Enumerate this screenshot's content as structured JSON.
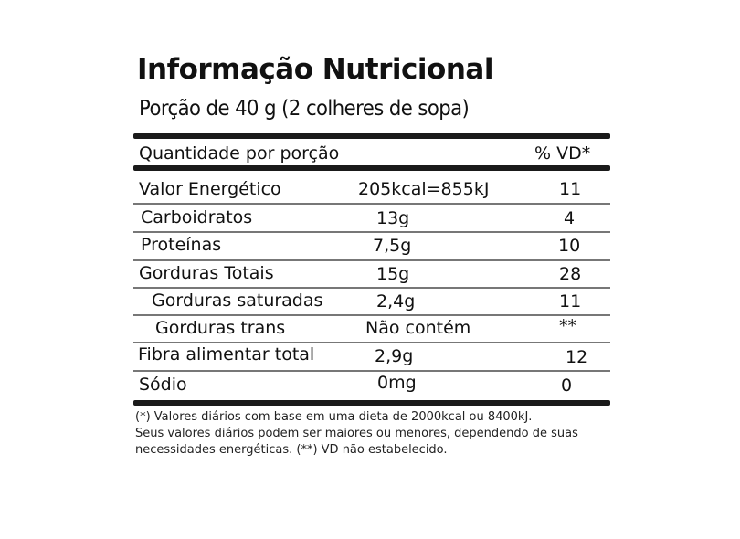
{
  "title": "Informação Nutricional",
  "portion": "Porção de 40 g (2 colheres de sopa)",
  "header": {
    "quantity": "Quantidade por porção",
    "vd": "% VD*"
  },
  "rows": [
    {
      "name": "Valor Energético",
      "amount": "205kcal=855kJ",
      "vd": "11"
    },
    {
      "name": "Carboidratos",
      "amount": "13g",
      "vd": "4"
    },
    {
      "name": "Proteínas",
      "amount": "7,5g",
      "vd": "10"
    },
    {
      "name": "Gorduras Totais",
      "amount": "15g",
      "vd": "28"
    },
    {
      "name": "Gorduras saturadas",
      "amount": "2,4g",
      "vd": "11"
    },
    {
      "name": "Gorduras trans",
      "amount": "Não contém",
      "vd": "**"
    },
    {
      "name": "Fibra alimentar total",
      "amount": "2,9g",
      "vd": "12"
    },
    {
      "name": "Sódio",
      "amount": "0mg",
      "vd": "0"
    }
  ],
  "footnote": [
    "(*) Valores diários com base em uma dieta de 2000kcal ou 8400kJ.",
    "Seus valores diários podem ser maiores ou menores, dependendo de suas",
    "necessidades energéticas. (**) VD não estabelecido."
  ]
}
